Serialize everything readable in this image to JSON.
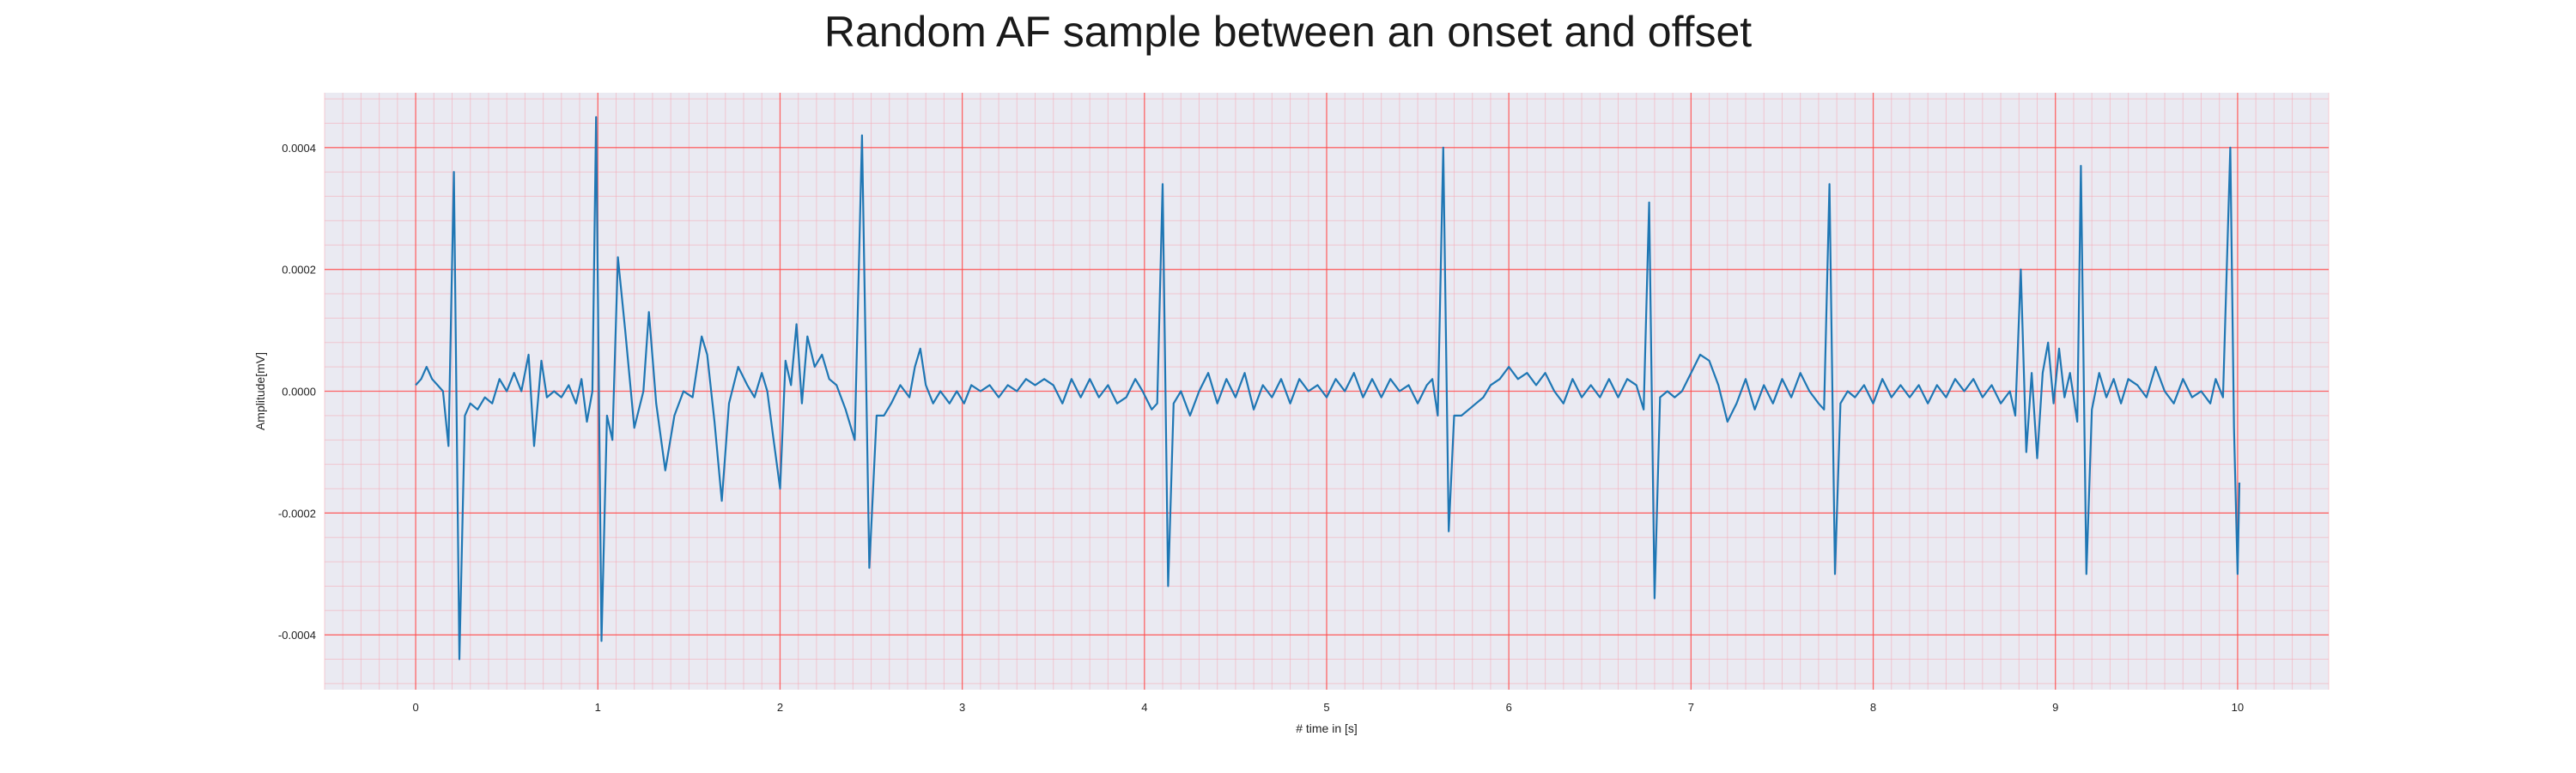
{
  "chart_data": {
    "type": "line",
    "title": "Random AF sample between an onset and offset",
    "xlabel": "# time in [s]",
    "ylabel": "Amplitude[mV]",
    "xlim": [
      -0.5,
      10.5
    ],
    "ylim": [
      -0.00049,
      0.00049
    ],
    "x_ticks": [
      0,
      1,
      2,
      3,
      4,
      5,
      6,
      7,
      8,
      9,
      10
    ],
    "y_ticks": [
      -0.0004,
      -0.0002,
      0.0,
      0.0002,
      0.0004
    ],
    "y_tick_labels": [
      "-0.0004",
      "-0.0002",
      "0.0000",
      "0.0002",
      "0.0004"
    ],
    "grid": true,
    "minor_grid": true,
    "colors": {
      "line": "#1f77b4",
      "background": "#eaeaf2",
      "major_grid": "#ff4d4d",
      "minor_grid": "#f4a8b4"
    },
    "series": [
      {
        "points": [
          [
            0.0,
            1e-05
          ],
          [
            0.03,
            2e-05
          ],
          [
            0.06,
            4e-05
          ],
          [
            0.09,
            2e-05
          ],
          [
            0.12,
            1e-05
          ],
          [
            0.15,
            0.0
          ],
          [
            0.18,
            -9e-05
          ],
          [
            0.21,
            0.00036
          ],
          [
            0.24,
            -0.00044
          ],
          [
            0.27,
            -4e-05
          ],
          [
            0.3,
            -2e-05
          ],
          [
            0.34,
            -3e-05
          ],
          [
            0.38,
            -1e-05
          ],
          [
            0.42,
            -2e-05
          ],
          [
            0.46,
            2e-05
          ],
          [
            0.5,
            0.0
          ],
          [
            0.54,
            3e-05
          ],
          [
            0.58,
            0.0
          ],
          [
            0.62,
            6e-05
          ],
          [
            0.65,
            -9e-05
          ],
          [
            0.69,
            5e-05
          ],
          [
            0.72,
            -1e-05
          ],
          [
            0.76,
            0.0
          ],
          [
            0.8,
            -1e-05
          ],
          [
            0.84,
            1e-05
          ],
          [
            0.88,
            -2e-05
          ],
          [
            0.91,
            2e-05
          ],
          [
            0.94,
            -5e-05
          ],
          [
            0.97,
            0.0
          ],
          [
            0.99,
            0.00045
          ],
          [
            1.02,
            -0.00041
          ],
          [
            1.05,
            -4e-05
          ],
          [
            1.08,
            -8e-05
          ],
          [
            1.11,
            0.00022
          ],
          [
            1.15,
            0.0001
          ],
          [
            1.2,
            -6e-05
          ],
          [
            1.25,
            0.0
          ],
          [
            1.28,
            0.00013
          ],
          [
            1.32,
            -2e-05
          ],
          [
            1.37,
            -0.00013
          ],
          [
            1.42,
            -4e-05
          ],
          [
            1.47,
            0.0
          ],
          [
            1.52,
            -1e-05
          ],
          [
            1.57,
            9e-05
          ],
          [
            1.6,
            6e-05
          ],
          [
            1.64,
            -5e-05
          ],
          [
            1.68,
            -0.00018
          ],
          [
            1.72,
            -2e-05
          ],
          [
            1.77,
            4e-05
          ],
          [
            1.82,
            1e-05
          ],
          [
            1.86,
            -1e-05
          ],
          [
            1.9,
            3e-05
          ],
          [
            1.93,
            0.0
          ],
          [
            1.96,
            -7e-05
          ],
          [
            2.0,
            -0.00016
          ],
          [
            2.03,
            5e-05
          ],
          [
            2.06,
            1e-05
          ],
          [
            2.09,
            0.00011
          ],
          [
            2.12,
            -2e-05
          ],
          [
            2.15,
            9e-05
          ],
          [
            2.19,
            4e-05
          ],
          [
            2.23,
            6e-05
          ],
          [
            2.27,
            2e-05
          ],
          [
            2.31,
            1e-05
          ],
          [
            2.36,
            -3e-05
          ],
          [
            2.41,
            -8e-05
          ],
          [
            2.45,
            0.00042
          ],
          [
            2.49,
            -0.00029
          ],
          [
            2.53,
            -4e-05
          ],
          [
            2.57,
            -4e-05
          ],
          [
            2.61,
            -2e-05
          ],
          [
            2.66,
            1e-05
          ],
          [
            2.71,
            -1e-05
          ],
          [
            2.74,
            4e-05
          ],
          [
            2.77,
            7e-05
          ],
          [
            2.8,
            1e-05
          ],
          [
            2.84,
            -2e-05
          ],
          [
            2.88,
            0.0
          ],
          [
            2.93,
            -2e-05
          ],
          [
            2.97,
            0.0
          ],
          [
            3.01,
            -2e-05
          ],
          [
            3.05,
            1e-05
          ],
          [
            3.1,
            0.0
          ],
          [
            3.15,
            1e-05
          ],
          [
            3.2,
            -1e-05
          ],
          [
            3.25,
            1e-05
          ],
          [
            3.3,
            0.0
          ],
          [
            3.35,
            2e-05
          ],
          [
            3.4,
            1e-05
          ],
          [
            3.45,
            2e-05
          ],
          [
            3.5,
            1e-05
          ],
          [
            3.55,
            -2e-05
          ],
          [
            3.6,
            2e-05
          ],
          [
            3.65,
            -1e-05
          ],
          [
            3.7,
            2e-05
          ],
          [
            3.75,
            -1e-05
          ],
          [
            3.8,
            1e-05
          ],
          [
            3.85,
            -2e-05
          ],
          [
            3.9,
            -1e-05
          ],
          [
            3.95,
            2e-05
          ],
          [
            3.99,
            0.0
          ],
          [
            4.04,
            -3e-05
          ],
          [
            4.07,
            -2e-05
          ],
          [
            4.1,
            0.00034
          ],
          [
            4.13,
            -0.00032
          ],
          [
            4.16,
            -2e-05
          ],
          [
            4.2,
            0.0
          ],
          [
            4.25,
            -4e-05
          ],
          [
            4.3,
            0.0
          ],
          [
            4.35,
            3e-05
          ],
          [
            4.4,
            -2e-05
          ],
          [
            4.45,
            2e-05
          ],
          [
            4.5,
            -1e-05
          ],
          [
            4.55,
            3e-05
          ],
          [
            4.6,
            -3e-05
          ],
          [
            4.65,
            1e-05
          ],
          [
            4.7,
            -1e-05
          ],
          [
            4.75,
            2e-05
          ],
          [
            4.8,
            -2e-05
          ],
          [
            4.85,
            2e-05
          ],
          [
            4.9,
            0.0
          ],
          [
            4.95,
            1e-05
          ],
          [
            5.0,
            -1e-05
          ],
          [
            5.05,
            2e-05
          ],
          [
            5.1,
            0.0
          ],
          [
            5.15,
            3e-05
          ],
          [
            5.2,
            -1e-05
          ],
          [
            5.25,
            2e-05
          ],
          [
            5.3,
            -1e-05
          ],
          [
            5.35,
            2e-05
          ],
          [
            5.4,
            0.0
          ],
          [
            5.45,
            1e-05
          ],
          [
            5.5,
            -2e-05
          ],
          [
            5.55,
            1e-05
          ],
          [
            5.58,
            2e-05
          ],
          [
            5.61,
            -4e-05
          ],
          [
            5.64,
            0.0004
          ],
          [
            5.67,
            -0.00023
          ],
          [
            5.7,
            -4e-05
          ],
          [
            5.74,
            -4e-05
          ],
          [
            5.78,
            -3e-05
          ],
          [
            5.82,
            -2e-05
          ],
          [
            5.86,
            -1e-05
          ],
          [
            5.9,
            1e-05
          ],
          [
            5.95,
            2e-05
          ],
          [
            6.0,
            4e-05
          ],
          [
            6.05,
            2e-05
          ],
          [
            6.1,
            3e-05
          ],
          [
            6.15,
            1e-05
          ],
          [
            6.2,
            3e-05
          ],
          [
            6.25,
            0.0
          ],
          [
            6.3,
            -2e-05
          ],
          [
            6.35,
            2e-05
          ],
          [
            6.4,
            -1e-05
          ],
          [
            6.45,
            1e-05
          ],
          [
            6.5,
            -1e-05
          ],
          [
            6.55,
            2e-05
          ],
          [
            6.6,
            -1e-05
          ],
          [
            6.65,
            2e-05
          ],
          [
            6.7,
            1e-05
          ],
          [
            6.74,
            -3e-05
          ],
          [
            6.77,
            0.00031
          ],
          [
            6.8,
            -0.00034
          ],
          [
            6.83,
            -1e-05
          ],
          [
            6.87,
            0.0
          ],
          [
            6.91,
            -1e-05
          ],
          [
            6.95,
            0.0
          ],
          [
            7.0,
            3e-05
          ],
          [
            7.05,
            6e-05
          ],
          [
            7.1,
            5e-05
          ],
          [
            7.15,
            1e-05
          ],
          [
            7.2,
            -5e-05
          ],
          [
            7.25,
            -2e-05
          ],
          [
            7.3,
            2e-05
          ],
          [
            7.35,
            -3e-05
          ],
          [
            7.4,
            1e-05
          ],
          [
            7.45,
            -2e-05
          ],
          [
            7.5,
            2e-05
          ],
          [
            7.55,
            -1e-05
          ],
          [
            7.6,
            3e-05
          ],
          [
            7.65,
            0.0
          ],
          [
            7.7,
            -2e-05
          ],
          [
            7.73,
            -3e-05
          ],
          [
            7.76,
            0.00034
          ],
          [
            7.79,
            -0.0003
          ],
          [
            7.82,
            -2e-05
          ],
          [
            7.86,
            0.0
          ],
          [
            7.9,
            -1e-05
          ],
          [
            7.95,
            1e-05
          ],
          [
            8.0,
            -2e-05
          ],
          [
            8.05,
            2e-05
          ],
          [
            8.1,
            -1e-05
          ],
          [
            8.15,
            1e-05
          ],
          [
            8.2,
            -1e-05
          ],
          [
            8.25,
            1e-05
          ],
          [
            8.3,
            -2e-05
          ],
          [
            8.35,
            1e-05
          ],
          [
            8.4,
            -1e-05
          ],
          [
            8.45,
            2e-05
          ],
          [
            8.5,
            0.0
          ],
          [
            8.55,
            2e-05
          ],
          [
            8.6,
            -1e-05
          ],
          [
            8.65,
            1e-05
          ],
          [
            8.7,
            -2e-05
          ],
          [
            8.75,
            0.0
          ],
          [
            8.78,
            -4e-05
          ],
          [
            8.81,
            0.0002
          ],
          [
            8.84,
            -0.0001
          ],
          [
            8.87,
            3e-05
          ],
          [
            8.9,
            -0.00011
          ],
          [
            8.93,
            3e-05
          ],
          [
            8.96,
            8e-05
          ],
          [
            8.99,
            -2e-05
          ],
          [
            9.02,
            7e-05
          ],
          [
            9.05,
            -1e-05
          ],
          [
            9.08,
            3e-05
          ],
          [
            9.12,
            -5e-05
          ],
          [
            9.14,
            0.00037
          ],
          [
            9.17,
            -0.0003
          ],
          [
            9.2,
            -3e-05
          ],
          [
            9.24,
            3e-05
          ],
          [
            9.28,
            -1e-05
          ],
          [
            9.32,
            2e-05
          ],
          [
            9.36,
            -2e-05
          ],
          [
            9.4,
            2e-05
          ],
          [
            9.45,
            1e-05
          ],
          [
            9.5,
            -1e-05
          ],
          [
            9.55,
            4e-05
          ],
          [
            9.6,
            0.0
          ],
          [
            9.65,
            -2e-05
          ],
          [
            9.7,
            2e-05
          ],
          [
            9.75,
            -1e-05
          ],
          [
            9.8,
            0.0
          ],
          [
            9.85,
            -2e-05
          ],
          [
            9.88,
            2e-05
          ],
          [
            9.92,
            -1e-05
          ],
          [
            9.96,
            0.0004
          ],
          [
            9.98,
            -6e-05
          ],
          [
            10.0,
            -0.0003
          ],
          [
            10.01,
            -0.00015
          ]
        ]
      }
    ]
  }
}
